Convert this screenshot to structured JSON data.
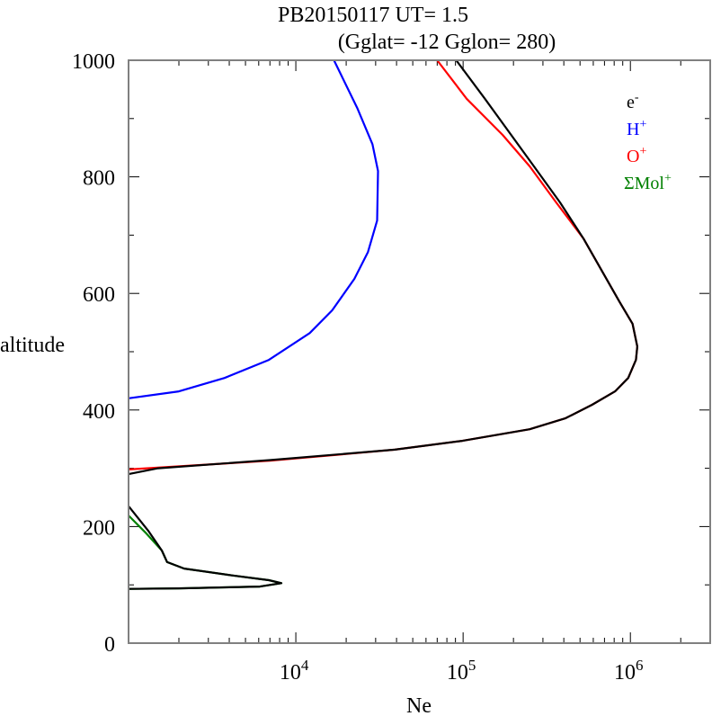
{
  "chart_data": {
    "type": "line",
    "title": "PB20150117   UT=  1.5",
    "subtitle": "(Gglat= -12   Gglon=  280)",
    "xlabel": "Ne",
    "ylabel": "altitude",
    "xscale": "log",
    "xlim": [
      1000,
      3000000
    ],
    "ylim": [
      0,
      1000
    ],
    "yticks": [
      0,
      200,
      400,
      600,
      800,
      1000
    ],
    "xticks": [
      {
        "v": 10000,
        "base": "10",
        "exp": "4"
      },
      {
        "v": 100000,
        "base": "10",
        "exp": "5"
      },
      {
        "v": 1000000,
        "base": "10",
        "exp": "6"
      }
    ],
    "legend_position": "top-right",
    "series": [
      {
        "name": "e-",
        "label": "e",
        "sup": "-",
        "color": "#000000",
        "points": [
          [
            91000,
            1000
          ],
          [
            135000,
            934
          ],
          [
            265000,
            818
          ],
          [
            380000,
            756
          ],
          [
            525000,
            694
          ],
          [
            860000,
            586
          ],
          [
            1030000,
            548
          ],
          [
            1100000,
            509
          ],
          [
            1080000,
            486
          ],
          [
            970000,
            455
          ],
          [
            810000,
            432
          ],
          [
            590000,
            409
          ],
          [
            410000,
            386
          ],
          [
            250000,
            367
          ],
          [
            99000,
            347
          ],
          [
            39000,
            332
          ],
          [
            7000,
            314
          ],
          [
            1500,
            300
          ],
          [
            1000,
            290
          ],
          null,
          [
            1000,
            235
          ],
          [
            1310.0,
            193
          ],
          [
            1580,
            159
          ],
          [
            1700,
            139
          ],
          [
            2150,
            128
          ],
          [
            4200,
            116
          ],
          [
            6900,
            108
          ],
          [
            8200,
            103
          ],
          [
            6100,
            97
          ],
          [
            2000,
            94
          ],
          [
            1000,
            93
          ]
        ]
      },
      {
        "name": "H+",
        "label": "H",
        "sup": "+",
        "color": "#0000ff",
        "points": [
          [
            16900,
            1000
          ],
          [
            23300,
            918
          ],
          [
            28700,
            856
          ],
          [
            31000,
            810
          ],
          [
            30600,
            725
          ],
          [
            27000,
            671
          ],
          [
            22400,
            625
          ],
          [
            16500,
            571
          ],
          [
            12100,
            532
          ],
          [
            6900,
            486
          ],
          [
            3750,
            455
          ],
          [
            2000,
            432
          ],
          [
            1000,
            420
          ]
        ]
      },
      {
        "name": "O+",
        "label": "O",
        "sup": "+",
        "color": "#ff0000",
        "points": [
          [
            70000,
            1000
          ],
          [
            105000,
            934
          ],
          [
            172000,
            872
          ],
          [
            250000,
            818
          ],
          [
            360000,
            756
          ],
          [
            525000,
            694
          ],
          [
            860000,
            586
          ],
          [
            1030000,
            548
          ],
          [
            1100000,
            509
          ],
          [
            1080000,
            486
          ],
          [
            970000,
            455
          ],
          [
            810000,
            432
          ],
          [
            590000,
            409
          ],
          [
            410000,
            386
          ],
          [
            250000,
            367
          ],
          [
            99000,
            347
          ],
          [
            39000,
            332
          ],
          [
            7000,
            313
          ],
          [
            1000,
            298
          ]
        ]
      },
      {
        "name": "ΣMol+",
        "label": "ΣMol",
        "sup": "+",
        "color": "#008000",
        "points": [
          [
            1000,
            219
          ],
          [
            1280,
            188
          ],
          [
            1580,
            159
          ],
          [
            1700,
            139
          ],
          [
            2150,
            128
          ],
          [
            4200,
            116
          ],
          [
            6900,
            108
          ],
          [
            8200,
            103
          ],
          [
            6100,
            97
          ],
          [
            2000,
            94
          ],
          [
            1000,
            93
          ]
        ]
      }
    ]
  }
}
